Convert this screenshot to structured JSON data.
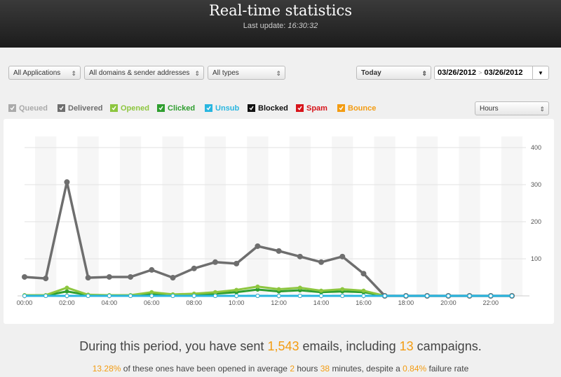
{
  "header": {
    "title": "Real-time statistics",
    "update_label": "Last update:",
    "update_time": "16:30:32"
  },
  "filters": {
    "application": "All Applications",
    "domains": "All domains & sender addresses",
    "types": "All types",
    "period": "Today",
    "date_from": "03/26/2012",
    "date_separator": ">",
    "date_to": "03/26/2012",
    "granularity": "Hours"
  },
  "chart": {
    "type": "line",
    "categories": [
      "00:00",
      null,
      "02:00",
      null,
      "04:00",
      null,
      "06:00",
      null,
      "08:00",
      null,
      "10:00",
      null,
      "12:00",
      null,
      "14:00",
      null,
      "16:00",
      null,
      "18:00",
      null,
      "20:00",
      null,
      "22:00",
      null
    ],
    "ylim": [
      0,
      400
    ],
    "yticks": [
      100,
      200,
      300,
      400
    ],
    "grid": true,
    "series": [
      {
        "name": "Queued",
        "color": "#aaaaaa",
        "values": [
          0,
          0,
          0,
          0,
          0,
          0,
          0,
          0,
          0,
          0,
          0,
          0,
          0,
          0,
          0,
          0,
          0,
          0,
          0,
          0,
          0,
          0,
          0,
          0
        ]
      },
      {
        "name": "Delivered",
        "color": "#6e6e6e",
        "values": [
          51,
          47,
          307,
          49,
          51,
          51,
          70,
          49,
          74,
          91,
          87,
          134,
          121,
          106,
          91,
          106,
          60,
          0,
          0,
          0,
          0,
          0,
          0,
          0
        ]
      },
      {
        "name": "Opened",
        "color": "#8dc63f",
        "values": [
          2,
          2,
          22,
          3,
          2,
          2,
          10,
          4,
          6,
          10,
          16,
          25,
          18,
          22,
          14,
          18,
          14,
          0,
          0,
          0,
          0,
          0,
          0,
          0
        ]
      },
      {
        "name": "Clicked",
        "color": "#2f9e2f",
        "values": [
          1,
          1,
          12,
          2,
          1,
          1,
          6,
          2,
          3,
          6,
          10,
          17,
          12,
          15,
          10,
          12,
          10,
          0,
          0,
          0,
          0,
          0,
          0,
          0
        ]
      },
      {
        "name": "Unsub",
        "color": "#29b6e0",
        "values": [
          0,
          0,
          0,
          0,
          0,
          0,
          0,
          0,
          0,
          0,
          0,
          0,
          0,
          0,
          0,
          0,
          0,
          0,
          0,
          0,
          0,
          0,
          0,
          0
        ]
      },
      {
        "name": "Blocked",
        "color": "#111111",
        "values": [
          0,
          0,
          0,
          0,
          0,
          0,
          0,
          0,
          0,
          0,
          0,
          0,
          0,
          0,
          0,
          0,
          0,
          0,
          0,
          0,
          0,
          0,
          0,
          0
        ]
      },
      {
        "name": "Spam",
        "color": "#d7141a",
        "values": [
          0,
          0,
          0,
          0,
          0,
          0,
          0,
          0,
          0,
          0,
          0,
          0,
          0,
          0,
          0,
          0,
          0,
          0,
          0,
          0,
          0,
          0,
          0,
          0
        ]
      },
      {
        "name": "Bounce",
        "color": "#f39c12",
        "values": [
          0,
          0,
          0,
          0,
          0,
          0,
          0,
          0,
          0,
          0,
          0,
          0,
          0,
          0,
          0,
          0,
          0,
          0,
          0,
          0,
          0,
          0,
          0,
          0
        ]
      }
    ]
  },
  "summary": {
    "line1": [
      "During this period, you have sent",
      "1,543",
      "emails, including",
      "13",
      "campaigns."
    ],
    "line2": [
      "13.28%",
      "of these ones have been opened in average",
      "2",
      "hours",
      "38",
      "minutes, despite a",
      "0.84%",
      "failure rate"
    ]
  }
}
